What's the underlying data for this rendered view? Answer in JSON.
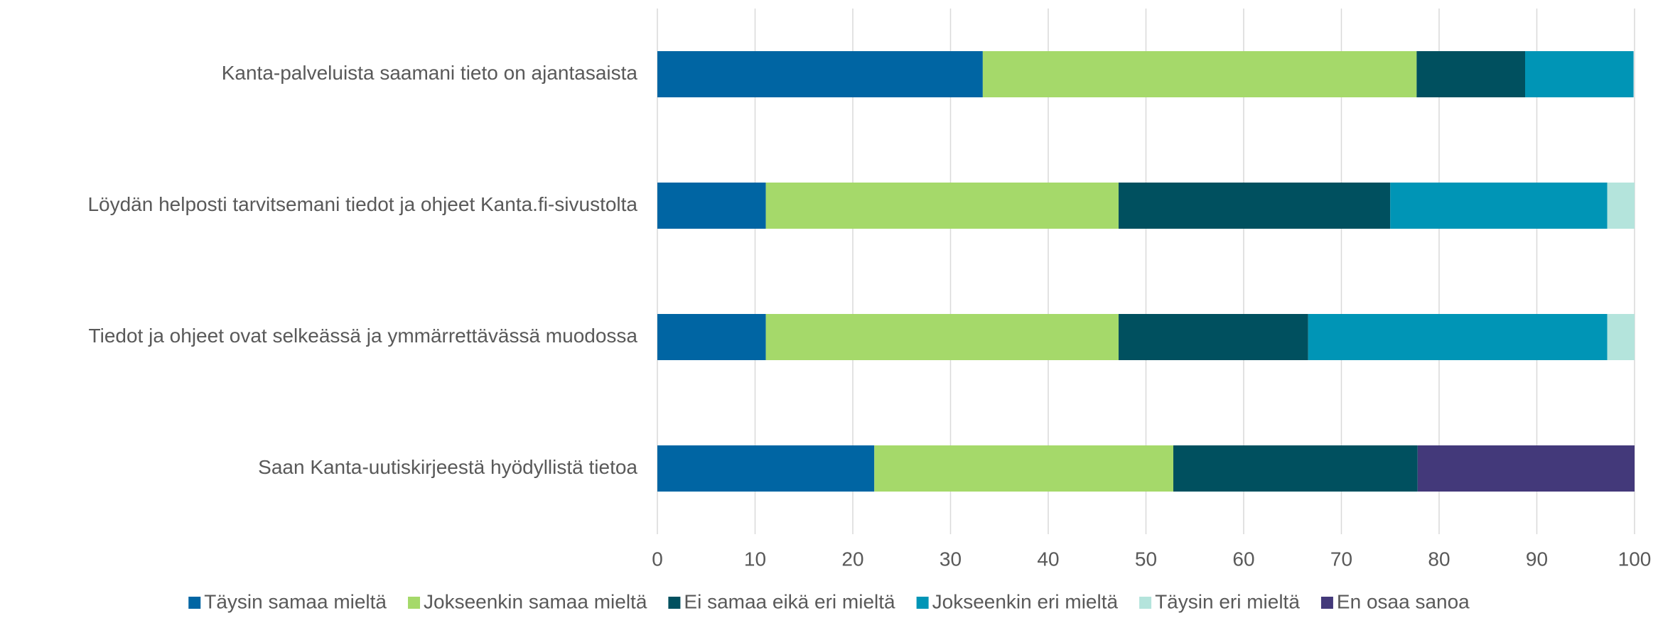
{
  "chart_data": {
    "type": "stacked_barh",
    "categories": [
      "Kanta-palveluista saamani tieto on ajantasaista",
      "Löydän helposti tarvitsemani tiedot ja ohjeet Kanta.fi-sivustolta",
      "Tiedot ja ohjeet ovat selkeässä ja ymmärrettävässä muodossa",
      "Saan Kanta-uutiskirjeestä hyödyllistä tietoa"
    ],
    "series": [
      {
        "name": "Täysin samaa mieltä",
        "color": "#0065a3",
        "values": [
          33.3,
          11.1,
          11.1,
          22.2
        ]
      },
      {
        "name": "Jokseenkin samaa mieltä",
        "color": "#a5d96a",
        "values": [
          44.4,
          36.1,
          36.1,
          30.6
        ]
      },
      {
        "name": "Ei samaa eikä eri mieltä",
        "color": "#00505f",
        "values": [
          11.1,
          27.8,
          19.4,
          25
        ]
      },
      {
        "name": "Jokseenkin eri mieltä",
        "color": "#0095b6",
        "values": [
          11.1,
          22.2,
          30.6,
          0
        ]
      },
      {
        "name": "Täysin eri mieltä",
        "color": "#b4e4dc",
        "values": [
          0,
          2.8,
          2.8,
          0
        ]
      },
      {
        "name": "En osaa sanoa",
        "color": "#43397a",
        "values": [
          0,
          0,
          0,
          22.2
        ]
      }
    ],
    "xlim": [
      0,
      100
    ],
    "xticks": [
      0,
      10,
      20,
      30,
      40,
      50,
      60,
      70,
      80,
      90,
      100
    ],
    "grid": true,
    "legend": "bottom"
  }
}
